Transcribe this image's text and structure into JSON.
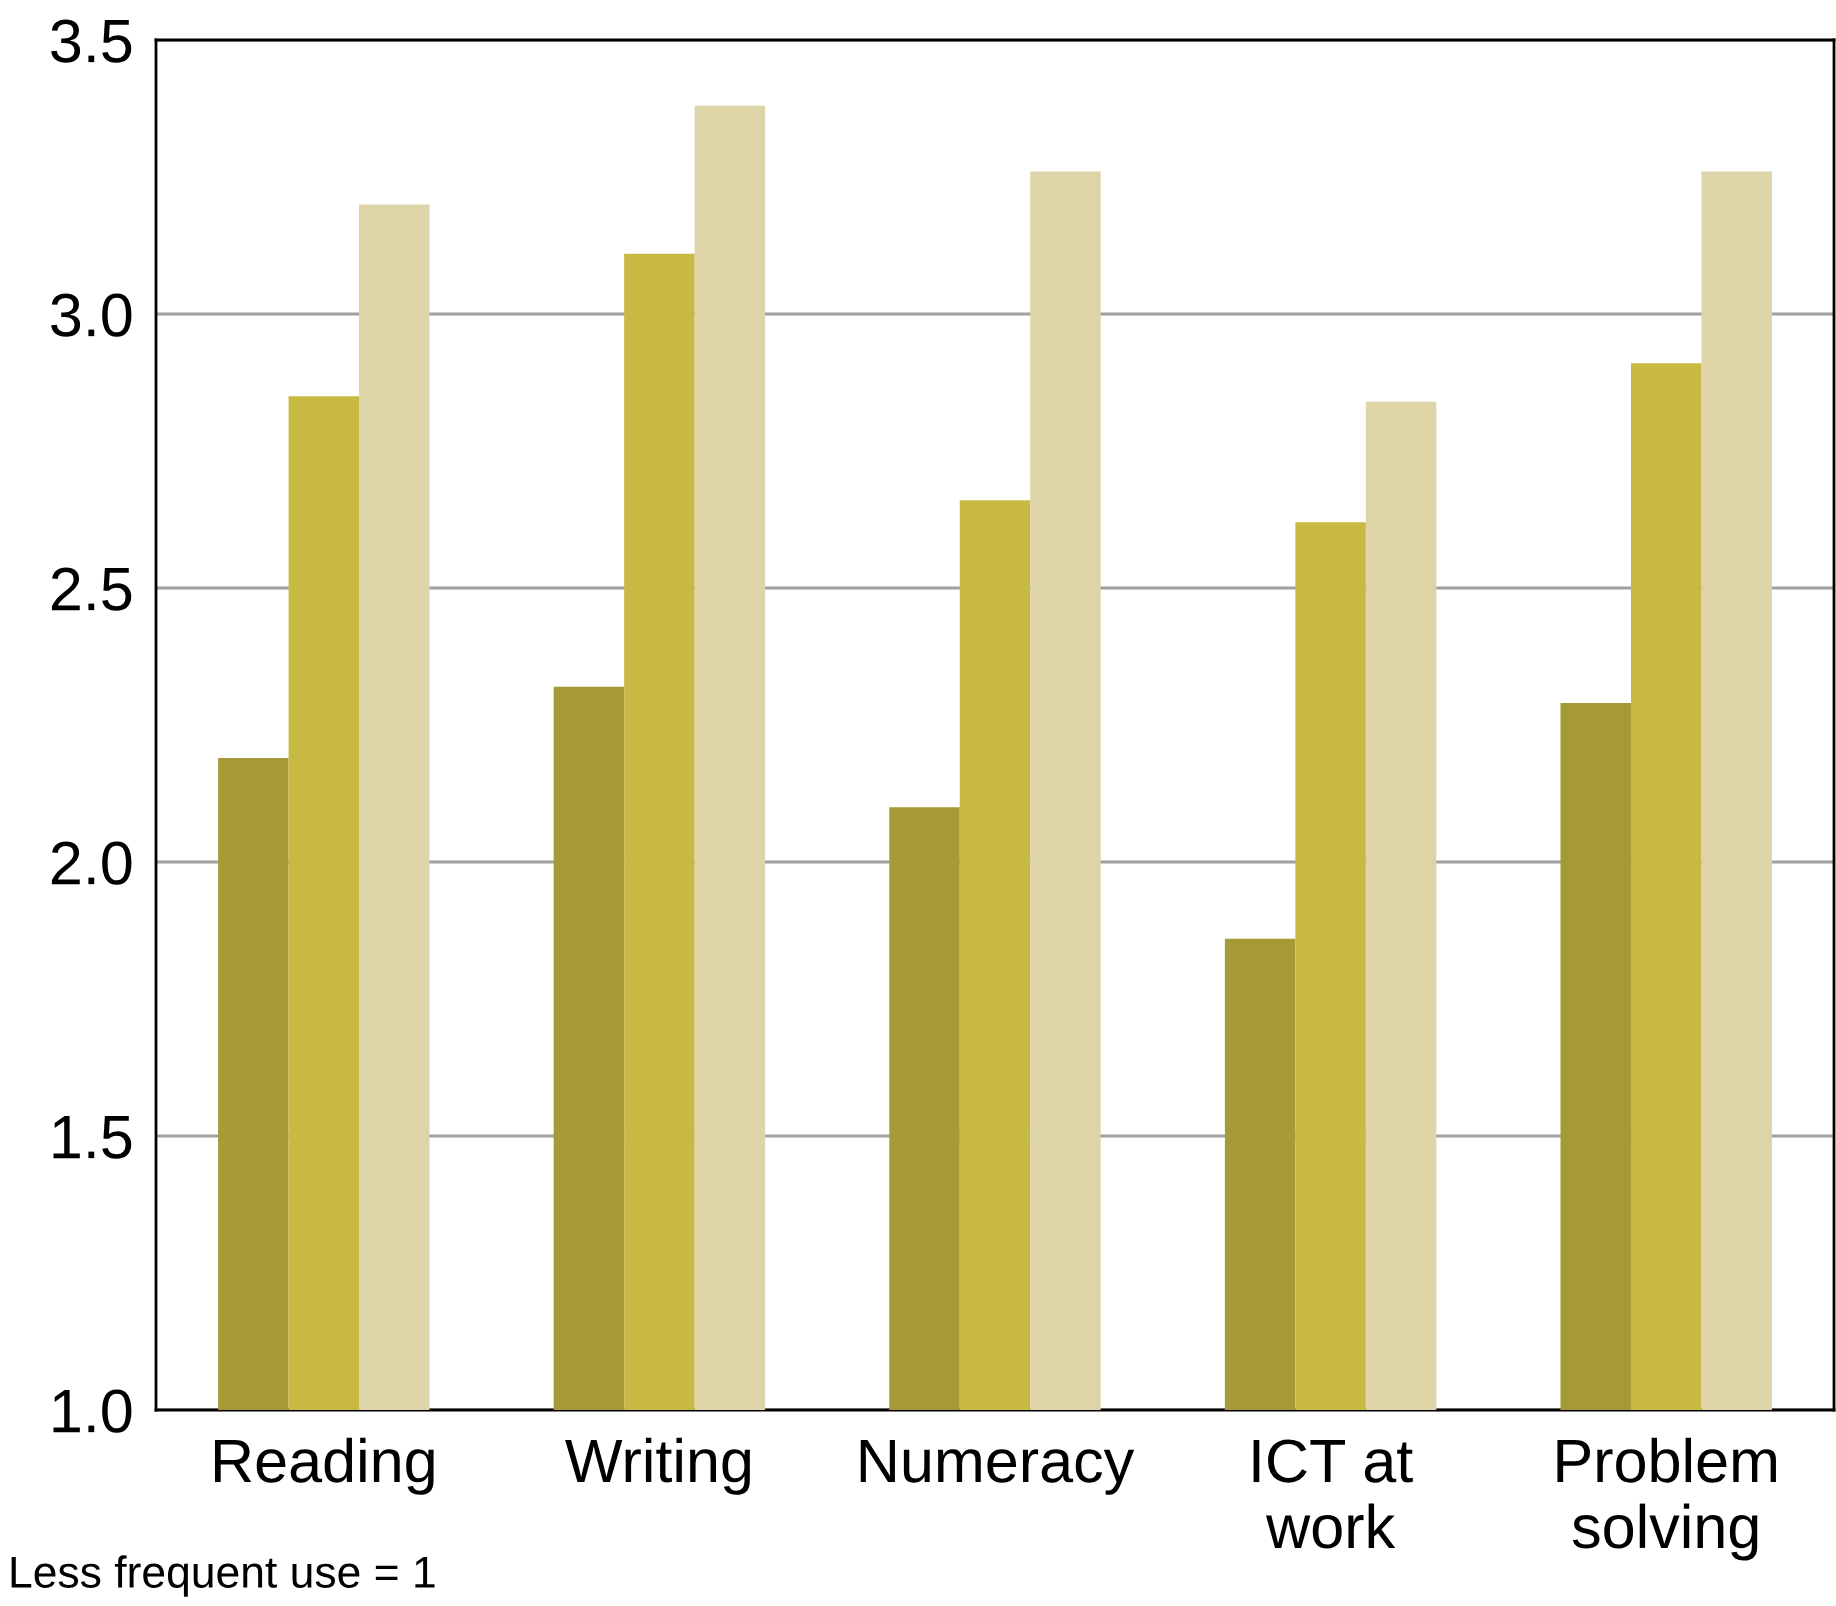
{
  "chart_data": {
    "type": "bar",
    "categories": [
      "Reading",
      "Writing",
      "Numeracy",
      "ICT at\nwork",
      "Problem\nsolving"
    ],
    "series": [
      {
        "color": "#a59a36",
        "values": [
          2.19,
          2.32,
          2.1,
          1.86,
          2.29
        ]
      },
      {
        "color": "#c7b942",
        "values": [
          2.85,
          3.11,
          2.66,
          2.62,
          2.91
        ]
      },
      {
        "color": "#ddd5a8",
        "values": [
          3.2,
          3.38,
          3.26,
          2.84,
          3.26
        ]
      }
    ],
    "ylim": [
      1.0,
      3.5
    ],
    "yticks": [
      {
        "value": 1.0,
        "label": "1.0"
      },
      {
        "value": 1.5,
        "label": "1.5"
      },
      {
        "value": 2.0,
        "label": "2.0"
      },
      {
        "value": 2.5,
        "label": "2.5"
      },
      {
        "value": 3.0,
        "label": "3.0"
      },
      {
        "value": 3.5,
        "label": "3.5"
      }
    ],
    "grid": "y",
    "legend": false,
    "annotations": [
      "Less frequent use = 1"
    ]
  }
}
